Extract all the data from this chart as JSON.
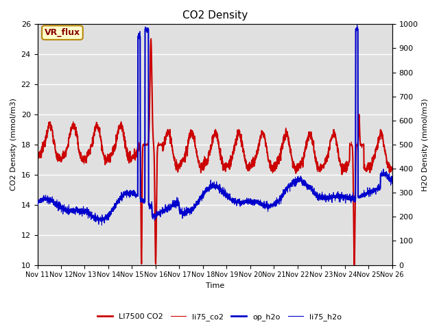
{
  "title": "CO2 Density",
  "xlabel": "Time",
  "ylabel_left": "CO2 Density (mmol/m3)",
  "ylabel_right": "H2O Density (mmol/m3)",
  "ylim_left": [
    10,
    26
  ],
  "ylim_right": [
    0,
    1000
  ],
  "yticks_left": [
    10,
    12,
    14,
    16,
    18,
    20,
    22,
    24,
    26
  ],
  "yticks_right": [
    0,
    100,
    200,
    300,
    400,
    500,
    600,
    700,
    800,
    900,
    1000
  ],
  "plot_bg_color": "#e0e0e0",
  "annotation_text": "VR_flux",
  "annotation_bg": "#ffffcc",
  "annotation_border": "#b8860b",
  "color_co2_thick": "#cc0000",
  "color_co2_thin": "#cc0000",
  "color_h2o_thick": "#0000cc",
  "color_h2o_thin": "#0000cc",
  "lw_thick": 1.5,
  "lw_thin": 0.7
}
